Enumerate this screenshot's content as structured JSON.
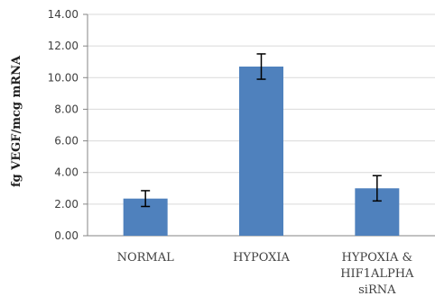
{
  "chart_data": {
    "type": "bar",
    "ylabel": "fg VEGF/mcg mRNA",
    "xlabel": "",
    "title": "",
    "ylim": [
      0,
      14
    ],
    "y_ticks": [
      "0.00",
      "2.00",
      "4.00",
      "6.00",
      "8.00",
      "10.00",
      "12.00",
      "14.00"
    ],
    "categories": [
      [
        "NORMAL"
      ],
      [
        "HYPOXIA"
      ],
      [
        "HYPOXIA &",
        "HIF1ALPHA",
        "siRNA"
      ]
    ],
    "values": [
      2.35,
      10.7,
      3.0
    ],
    "errors": [
      0.5,
      0.8,
      0.8
    ],
    "grid": true,
    "colors": {
      "bar": "#4f81bd",
      "grid": "#d9d9d9",
      "axis": "#868686"
    }
  }
}
